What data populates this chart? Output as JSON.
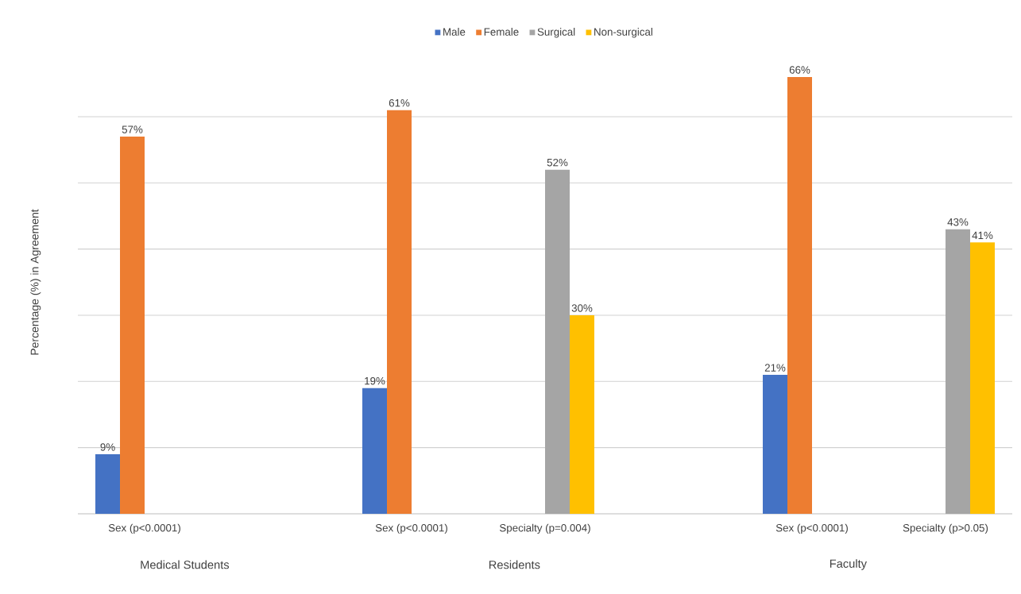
{
  "chart_data": {
    "type": "bar",
    "ylabel": "Percentage (%) in Agreement",
    "categories": [
      "Sex (p<0.0001)",
      null,
      "Sex (p<0.0001)",
      "Specialty (p=0.004)",
      null,
      "Sex (p<0.0001)",
      "Specialty (p>0.05)"
    ],
    "series": [
      {
        "name": "Male",
        "color": "#4472c4",
        "values": [
          9,
          null,
          19,
          null,
          null,
          21,
          null
        ],
        "value_labels": [
          "9%",
          null,
          "19%",
          null,
          null,
          "21%",
          null
        ]
      },
      {
        "name": "Female",
        "color": "#ed7d31",
        "values": [
          57,
          null,
          61,
          null,
          null,
          66,
          null
        ],
        "value_labels": [
          "57%",
          null,
          "61%",
          null,
          null,
          "66%",
          null
        ]
      },
      {
        "name": "Surgical",
        "color": "#a5a5a5",
        "values": [
          null,
          null,
          null,
          52,
          null,
          null,
          43
        ],
        "value_labels": [
          null,
          null,
          null,
          "52%",
          null,
          null,
          "43%"
        ]
      },
      {
        "name": "Non-surgical",
        "color": "#ffc000",
        "values": [
          null,
          null,
          null,
          30,
          null,
          null,
          41
        ],
        "value_labels": [
          null,
          null,
          null,
          "30%",
          null,
          null,
          "41%"
        ]
      }
    ],
    "annotations": [
      "Medical Students",
      "Residents",
      "Faculty"
    ],
    "tick_labels": "x",
    "grid": "y",
    "legend": "top"
  }
}
